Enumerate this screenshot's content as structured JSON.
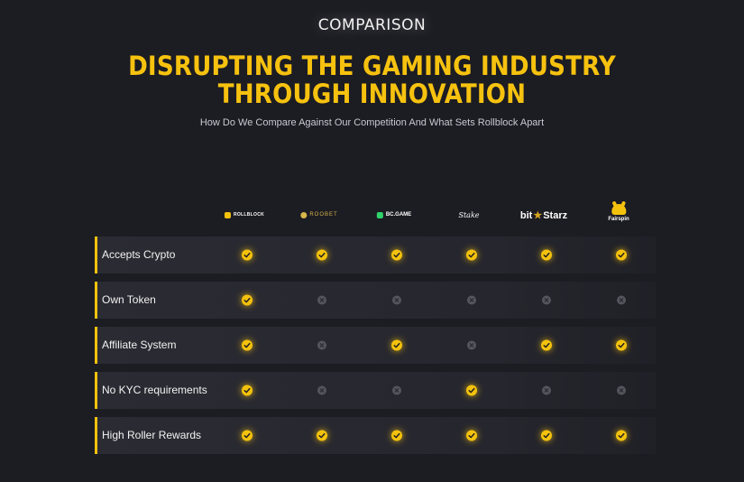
{
  "section": {
    "eyebrow": "COMPARISON",
    "headline_line1": "DISRUPTING THE GAMING INDUSTRY",
    "headline_line2": "THROUGH INNOVATION",
    "subtitle": "How Do We Compare Against Our Competition And What Sets Rollblock Apart"
  },
  "competitors": [
    {
      "name": "ROLLBLOCK",
      "icon": "rollblock-logo"
    },
    {
      "name": "ROOBET",
      "icon": "roobet-logo"
    },
    {
      "name": "BC.GAME",
      "icon": "bcgame-logo"
    },
    {
      "name": "Stake",
      "icon": "stake-logo"
    },
    {
      "name_left": "bit",
      "name_right": "Starz",
      "icon": "bitstarz-logo"
    },
    {
      "name": "Fairspin",
      "icon": "fairspin-logo"
    }
  ],
  "features": [
    {
      "label": "Accepts Crypto",
      "values": [
        true,
        true,
        true,
        true,
        true,
        true
      ]
    },
    {
      "label": "Own Token",
      "values": [
        true,
        false,
        false,
        false,
        false,
        false
      ]
    },
    {
      "label": "Affiliate System",
      "values": [
        true,
        false,
        true,
        false,
        true,
        true
      ]
    },
    {
      "label": "No KYC requirements",
      "values": [
        true,
        false,
        false,
        true,
        false,
        false
      ]
    },
    {
      "label": "High Roller Rewards",
      "values": [
        true,
        true,
        true,
        true,
        true,
        true
      ]
    }
  ],
  "colors": {
    "accent": "#f4c20d",
    "background": "#1c1c23",
    "row": "#2b2b33",
    "no_icon": "#55555e"
  }
}
